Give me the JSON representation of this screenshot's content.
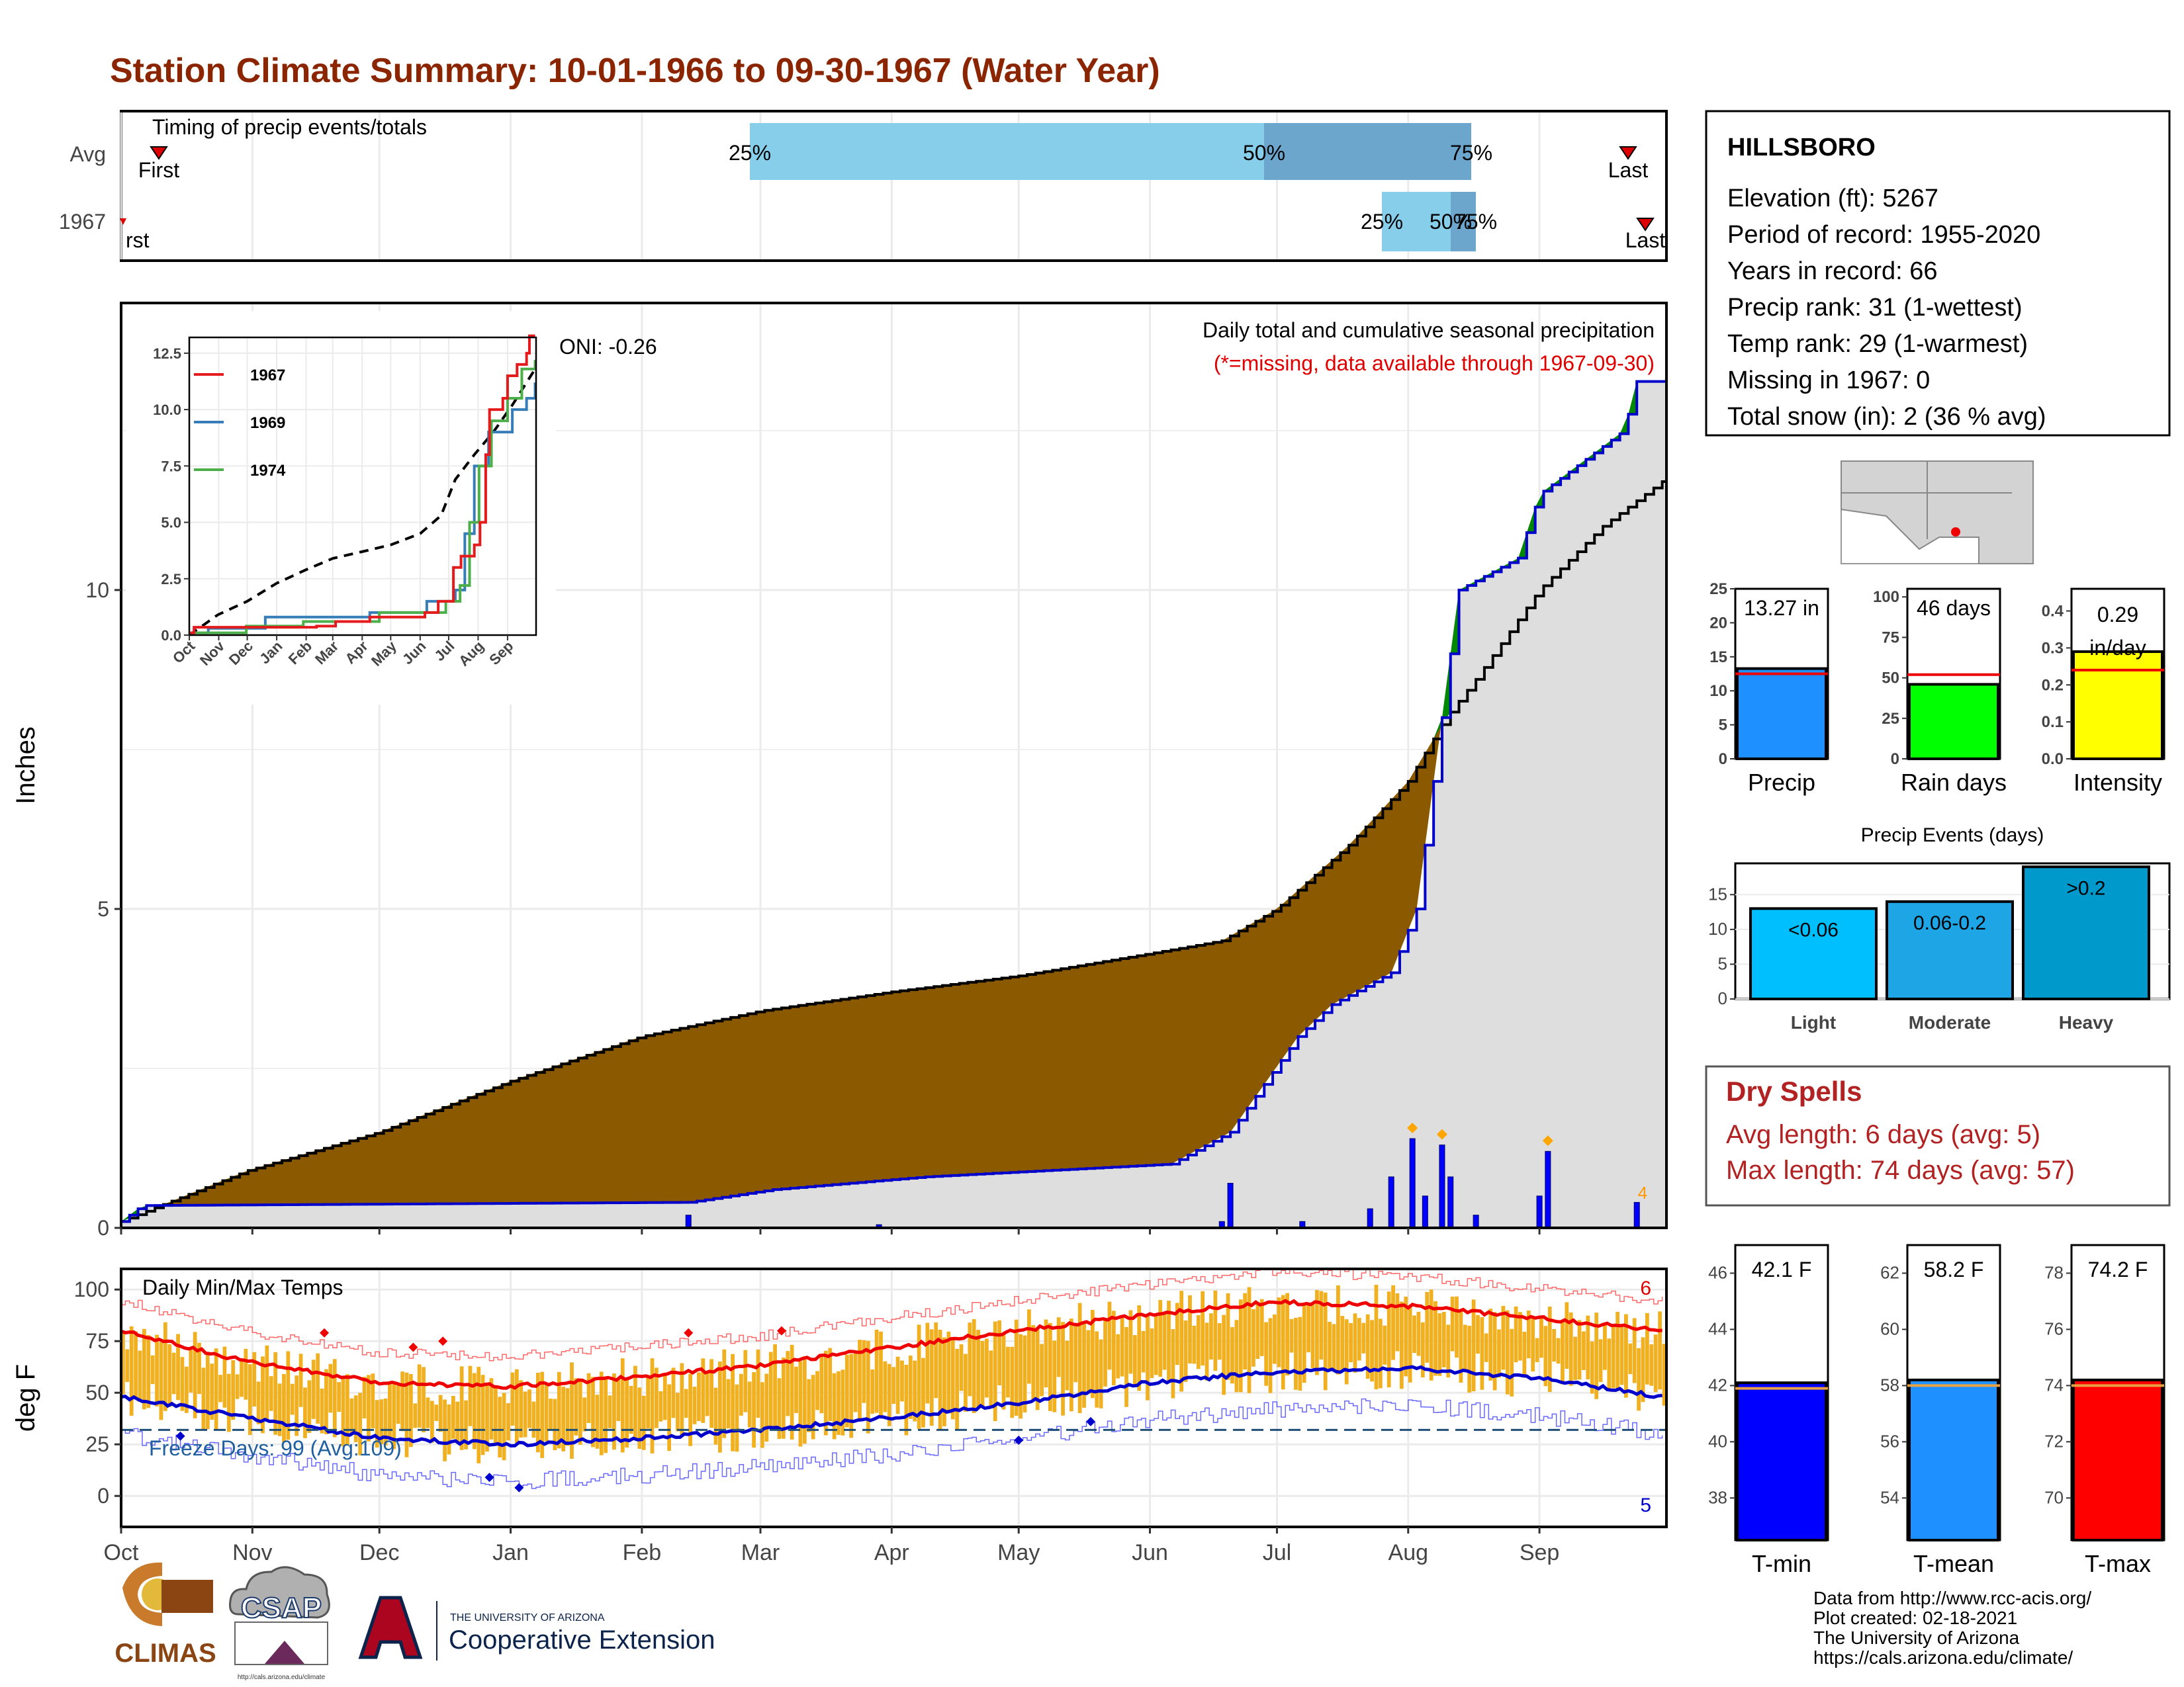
{
  "title": "Station Climate Summary: 10-01-1966 to 09-30-1967 (Water Year)",
  "months": [
    "Oct",
    "Nov",
    "Dec",
    "Jan",
    "Feb",
    "Mar",
    "Apr",
    "May",
    "Jun",
    "Jul",
    "Aug",
    "Sep"
  ],
  "station": {
    "name": "HILLSBORO",
    "lines": [
      "Elevation (ft): 5267",
      "Period of record: 1955-2020",
      "Years in record: 66",
      "Precip rank: 31 (1-wettest)",
      "Temp rank: 29 (1-warmest)",
      "Missing in 1967: 0",
      "Total snow (in): 2 (36 % avg)"
    ]
  },
  "timing": {
    "label": "Timing of precip events/totals",
    "rows": [
      "Avg",
      "1967"
    ],
    "avg": {
      "first": "First",
      "last": "Last",
      "p25": "25%",
      "p50": "50%",
      "p75": "75%"
    },
    "y1967": {
      "first": "First",
      "last": "Last",
      "p25": "25%",
      "p50": "50%",
      "p75": "75%"
    }
  },
  "precip_panel": {
    "ylabel": "Inches",
    "yticks": [
      "0",
      "5",
      "10"
    ],
    "oni": "ONI: -0.26",
    "subtitle": "Daily total and cumulative seasonal precipitation",
    "missing_note": "(*=missing, data available through 1967-09-30)",
    "event_count_label": "4"
  },
  "inset": {
    "yticks": [
      "0.0",
      "2.5",
      "5.0",
      "7.5",
      "10.0",
      "12.5"
    ],
    "legend": [
      {
        "name": "1967",
        "color": "#e41a1c"
      },
      {
        "name": "1969",
        "color": "#377eb8"
      },
      {
        "name": "1974",
        "color": "#4daf4a"
      }
    ]
  },
  "stat_bars": [
    {
      "label": "Precip",
      "value_text": "13.27 in",
      "value": 13.27,
      "avg": 12.5,
      "yticks": [
        "0",
        "5",
        "10",
        "15",
        "20",
        "25"
      ],
      "max": 25,
      "color": "#1e90ff"
    },
    {
      "label": "Rain days",
      "value_text": "46 days",
      "value": 46,
      "avg": 52,
      "yticks": [
        "0",
        "25",
        "50",
        "75",
        "100"
      ],
      "max": 105,
      "color": "#00ff00"
    },
    {
      "label": "Intensity",
      "value_text": "0.29 in/day",
      "value_line1": "0.29",
      "value_line2": "in/day",
      "value": 0.29,
      "avg": 0.24,
      "yticks": [
        "0.0",
        "0.1",
        "0.2",
        "0.3",
        "0.4"
      ],
      "max": 0.46,
      "color": "#ffff00"
    }
  ],
  "events": {
    "title": "Precip Events (days)",
    "yticks": [
      "0",
      "5",
      "10",
      "15"
    ],
    "bars": [
      {
        "label": "Light",
        "range": "<0.06",
        "value": 13,
        "color": "#00bfff"
      },
      {
        "label": "Moderate",
        "range": "0.06-0.2",
        "value": 14,
        "color": "#1ea5e6"
      },
      {
        "label": "Heavy",
        "range": ">0.2",
        "value": 19,
        "color": "#0099cc"
      }
    ]
  },
  "dry_spells": {
    "title": "Dry Spells",
    "avg_length": "Avg length: 6 days (avg: 5)",
    "max_length": "Max length: 74 days (avg: 57)"
  },
  "temp_panel": {
    "label": "Daily Min/Max Temps",
    "ylabel": "deg F",
    "yticks": [
      "0",
      "25",
      "50",
      "75",
      "100"
    ],
    "freeze": "Freeze Days: 99 (Avg:109)",
    "max_count": "6",
    "min_count": "5"
  },
  "temp_bars": [
    {
      "label": "T-min",
      "value_text": "42.1 F",
      "value": 42.1,
      "avg": 41.9,
      "yticks": [
        "38",
        "40",
        "42",
        "44",
        "46"
      ],
      "min": 36.5,
      "max": 47,
      "color": "#0000ff"
    },
    {
      "label": "T-mean",
      "value_text": "58.2 F",
      "value": 58.2,
      "avg": 58.0,
      "yticks": [
        "54",
        "56",
        "58",
        "60",
        "62"
      ],
      "min": 52.5,
      "max": 63,
      "color": "#1e90ff"
    },
    {
      "label": "T-max",
      "value_text": "74.2 F",
      "value": 74.2,
      "avg": 74.0,
      "yticks": [
        "70",
        "72",
        "74",
        "76",
        "78"
      ],
      "min": 68.5,
      "max": 79,
      "color": "#ff0000"
    }
  ],
  "footer": {
    "lines": [
      "Data from http://www.rcc-acis.org/",
      "Plot created: 02-18-2021",
      "The University of Arizona",
      "https://cals.arizona.edu/climate/"
    ],
    "climas": "CLIMAS",
    "csap": "CSAP",
    "csap_url": "http://cals.arizona.edu/climate",
    "ua_small": "THE UNIVERSITY OF ARIZONA",
    "ua_big": "Cooperative Extension"
  },
  "chart_data": [
    {
      "type": "area",
      "title": "Daily total and cumulative seasonal precipitation",
      "ylabel": "Inches",
      "ylim": [
        0,
        14.5
      ],
      "x_unit": "day of water year (Oct 1 = 0)",
      "average_cumulative": [
        [
          0,
          0.1
        ],
        [
          30,
          0.9
        ],
        [
          61,
          1.5
        ],
        [
          92,
          2.3
        ],
        [
          123,
          3.0
        ],
        [
          151,
          3.4
        ],
        [
          182,
          3.7
        ],
        [
          212,
          3.95
        ],
        [
          243,
          4.3
        ],
        [
          260,
          4.5
        ],
        [
          273,
          5.0
        ],
        [
          290,
          6.0
        ],
        [
          304,
          7.0
        ],
        [
          313,
          8.0
        ],
        [
          320,
          8.6
        ],
        [
          335,
          10.0
        ],
        [
          350,
          11.0
        ],
        [
          364,
          11.7
        ]
      ],
      "cumulative_1967": [
        [
          0,
          0.1
        ],
        [
          5,
          0.35
        ],
        [
          134,
          0.4
        ],
        [
          154,
          0.6
        ],
        [
          190,
          0.8
        ],
        [
          248,
          1.0
        ],
        [
          262,
          1.5
        ],
        [
          278,
          3.0
        ],
        [
          286,
          3.5
        ],
        [
          300,
          4.0
        ],
        [
          306,
          5.0
        ],
        [
          312,
          8.0
        ],
        [
          316,
          10.0
        ],
        [
          330,
          10.5
        ],
        [
          335,
          11.5
        ],
        [
          345,
          12.0
        ],
        [
          355,
          12.5
        ],
        [
          358,
          13.27
        ],
        [
          364,
          13.27
        ]
      ],
      "daily_bars": [
        [
          134,
          0.2
        ],
        [
          179,
          0.05
        ],
        [
          260,
          0.1
        ],
        [
          262,
          0.7
        ],
        [
          279,
          0.1
        ],
        [
          295,
          0.3
        ],
        [
          300,
          0.8
        ],
        [
          305,
          1.4
        ],
        [
          308,
          0.5
        ],
        [
          312,
          1.3
        ],
        [
          314,
          0.8
        ],
        [
          320,
          0.2
        ],
        [
          335,
          0.5
        ],
        [
          337,
          1.2
        ],
        [
          358,
          0.4
        ]
      ]
    },
    {
      "type": "line",
      "title": "Daily Min/Max Temps",
      "ylabel": "deg F",
      "ylim": [
        -15,
        110
      ],
      "series": [
        {
          "name": "avg max",
          "x": [
            0,
            30,
            61,
            92,
            123,
            151,
            182,
            212,
            243,
            273,
            304,
            335,
            364
          ],
          "y": [
            80,
            65,
            55,
            53,
            58,
            63,
            72,
            80,
            88,
            94,
            92,
            86,
            80
          ]
        },
        {
          "name": "avg min",
          "x": [
            0,
            30,
            61,
            92,
            123,
            151,
            182,
            212,
            243,
            273,
            304,
            335,
            364
          ],
          "y": [
            48,
            38,
            28,
            25,
            28,
            32,
            38,
            45,
            55,
            60,
            62,
            57,
            48
          ]
        }
      ],
      "freeze_threshold": 32
    }
  ]
}
